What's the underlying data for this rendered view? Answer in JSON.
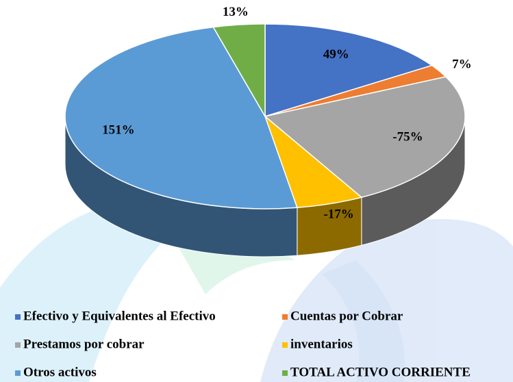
{
  "chart_data": {
    "type": "pie",
    "categories": [
      "Efectivo y Equivalentes al Efectivo",
      "Cuentas por Cobrar",
      "Prestamos  por cobrar",
      "inventarios",
      "Otros activos",
      "TOTAL ACTIVO CORRIENTE"
    ],
    "values": [
      49,
      7,
      -75,
      -17,
      151,
      13
    ],
    "value_labels": [
      "49%",
      "7%",
      "-75%",
      "-17%",
      "151%",
      "13%"
    ],
    "colors": [
      "#4472c4",
      "#ed7d31",
      "#a5a5a5",
      "#ffc000",
      "#5b9bd5",
      "#70ad47"
    ],
    "legend": "bottom"
  }
}
